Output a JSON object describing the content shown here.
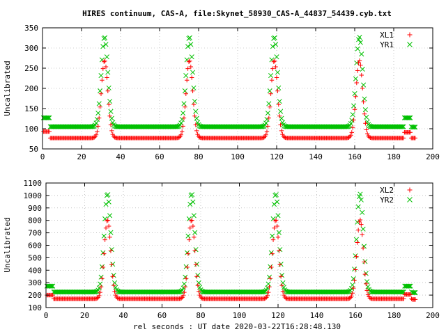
{
  "figure": {
    "title": "HIRES continuum, CAS-A, file:Skynet_58930_CAS-A_44837_54439.cyb.txt",
    "xlabel": "rel seconds : UT date 2020-03-22T16:28:48.130"
  },
  "colors": {
    "series_a": "#ff0000",
    "series_b": "#00c000"
  },
  "chart_data": [
    {
      "type": "scatter",
      "ylabel": "Uncalibrated",
      "xlim": [
        0,
        200
      ],
      "ylim": [
        50,
        350
      ],
      "xticks": [
        0,
        20,
        40,
        60,
        80,
        100,
        120,
        140,
        160,
        180,
        200
      ],
      "yticks": [
        50,
        100,
        150,
        200,
        250,
        300,
        350
      ],
      "grid": true,
      "legend_position": "top-right",
      "peak_centers": [
        31.8,
        75.3,
        118.8,
        162.4
      ],
      "series": [
        {
          "name": "XL1",
          "marker": "+",
          "baseline": 77,
          "peak": 269,
          "cal_start": [
            0.5,
            3.5
          ],
          "cal_start_level": 93,
          "cal_end": [
            185.5,
            188.5
          ],
          "cal_end_level": 91,
          "tail": [
            189.5,
            191
          ],
          "tail_level": 77
        },
        {
          "name": "YR1",
          "marker": "x",
          "baseline": 105,
          "peak": 327,
          "cal_start": [
            0.5,
            3.5
          ],
          "cal_start_level": 127,
          "cal_end": [
            185.5,
            188.5
          ],
          "cal_end_level": 127,
          "tail": [
            189.5,
            191
          ],
          "tail_level": 104
        }
      ]
    },
    {
      "type": "scatter",
      "ylabel": "Uncalibrated",
      "xlim": [
        0,
        200
      ],
      "ylim": [
        100,
        1100
      ],
      "xticks": [
        0,
        20,
        40,
        60,
        80,
        100,
        120,
        140,
        160,
        180,
        200
      ],
      "yticks": [
        100,
        200,
        300,
        400,
        500,
        600,
        700,
        800,
        900,
        1000,
        1100
      ],
      "grid": true,
      "legend_position": "top-right",
      "peak_centers": [
        31.8,
        75.3,
        118.8,
        162.4
      ],
      "series": [
        {
          "name": "XL2",
          "marker": "+",
          "baseline": 170,
          "peak": 805,
          "cal_start": [
            0.5,
            3.5
          ],
          "cal_start_level": 200,
          "cal_end": [
            185.5,
            188.5
          ],
          "cal_end_level": 205,
          "tail": [
            189.5,
            191
          ],
          "tail_level": 165
        },
        {
          "name": "YR2",
          "marker": "x",
          "baseline": 225,
          "peak": 1012,
          "cal_start": [
            0.5,
            3.5
          ],
          "cal_start_level": 272,
          "cal_end": [
            185.5,
            188.5
          ],
          "cal_end_level": 272,
          "tail": [
            189.5,
            191
          ],
          "tail_level": 220
        }
      ]
    }
  ]
}
